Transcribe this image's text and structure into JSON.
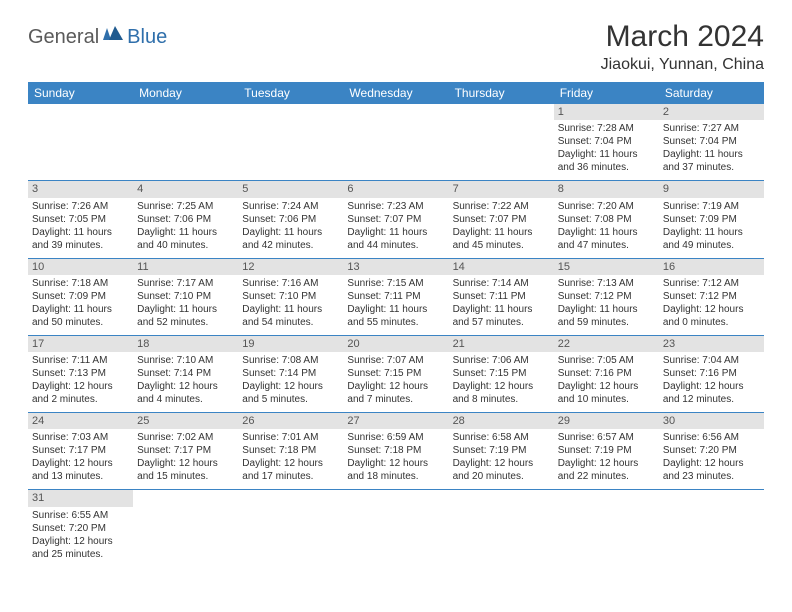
{
  "logo": {
    "part1": "General",
    "part2": "Blue"
  },
  "title": "March 2024",
  "location": "Jiaokui, Yunnan, China",
  "colors": {
    "header_bg": "#3b84c4",
    "header_text": "#ffffff",
    "daynum_bg": "#e3e3e3",
    "border": "#3b84c4",
    "text": "#333333",
    "logo_gray": "#5a5a5a",
    "logo_blue": "#2f6fab"
  },
  "weekdays": [
    "Sunday",
    "Monday",
    "Tuesday",
    "Wednesday",
    "Thursday",
    "Friday",
    "Saturday"
  ],
  "weeks": [
    [
      null,
      null,
      null,
      null,
      null,
      {
        "n": "1",
        "sunrise": "Sunrise: 7:28 AM",
        "sunset": "Sunset: 7:04 PM",
        "day1": "Daylight: 11 hours",
        "day2": "and 36 minutes."
      },
      {
        "n": "2",
        "sunrise": "Sunrise: 7:27 AM",
        "sunset": "Sunset: 7:04 PM",
        "day1": "Daylight: 11 hours",
        "day2": "and 37 minutes."
      }
    ],
    [
      {
        "n": "3",
        "sunrise": "Sunrise: 7:26 AM",
        "sunset": "Sunset: 7:05 PM",
        "day1": "Daylight: 11 hours",
        "day2": "and 39 minutes."
      },
      {
        "n": "4",
        "sunrise": "Sunrise: 7:25 AM",
        "sunset": "Sunset: 7:06 PM",
        "day1": "Daylight: 11 hours",
        "day2": "and 40 minutes."
      },
      {
        "n": "5",
        "sunrise": "Sunrise: 7:24 AM",
        "sunset": "Sunset: 7:06 PM",
        "day1": "Daylight: 11 hours",
        "day2": "and 42 minutes."
      },
      {
        "n": "6",
        "sunrise": "Sunrise: 7:23 AM",
        "sunset": "Sunset: 7:07 PM",
        "day1": "Daylight: 11 hours",
        "day2": "and 44 minutes."
      },
      {
        "n": "7",
        "sunrise": "Sunrise: 7:22 AM",
        "sunset": "Sunset: 7:07 PM",
        "day1": "Daylight: 11 hours",
        "day2": "and 45 minutes."
      },
      {
        "n": "8",
        "sunrise": "Sunrise: 7:20 AM",
        "sunset": "Sunset: 7:08 PM",
        "day1": "Daylight: 11 hours",
        "day2": "and 47 minutes."
      },
      {
        "n": "9",
        "sunrise": "Sunrise: 7:19 AM",
        "sunset": "Sunset: 7:09 PM",
        "day1": "Daylight: 11 hours",
        "day2": "and 49 minutes."
      }
    ],
    [
      {
        "n": "10",
        "sunrise": "Sunrise: 7:18 AM",
        "sunset": "Sunset: 7:09 PM",
        "day1": "Daylight: 11 hours",
        "day2": "and 50 minutes."
      },
      {
        "n": "11",
        "sunrise": "Sunrise: 7:17 AM",
        "sunset": "Sunset: 7:10 PM",
        "day1": "Daylight: 11 hours",
        "day2": "and 52 minutes."
      },
      {
        "n": "12",
        "sunrise": "Sunrise: 7:16 AM",
        "sunset": "Sunset: 7:10 PM",
        "day1": "Daylight: 11 hours",
        "day2": "and 54 minutes."
      },
      {
        "n": "13",
        "sunrise": "Sunrise: 7:15 AM",
        "sunset": "Sunset: 7:11 PM",
        "day1": "Daylight: 11 hours",
        "day2": "and 55 minutes."
      },
      {
        "n": "14",
        "sunrise": "Sunrise: 7:14 AM",
        "sunset": "Sunset: 7:11 PM",
        "day1": "Daylight: 11 hours",
        "day2": "and 57 minutes."
      },
      {
        "n": "15",
        "sunrise": "Sunrise: 7:13 AM",
        "sunset": "Sunset: 7:12 PM",
        "day1": "Daylight: 11 hours",
        "day2": "and 59 minutes."
      },
      {
        "n": "16",
        "sunrise": "Sunrise: 7:12 AM",
        "sunset": "Sunset: 7:12 PM",
        "day1": "Daylight: 12 hours",
        "day2": "and 0 minutes."
      }
    ],
    [
      {
        "n": "17",
        "sunrise": "Sunrise: 7:11 AM",
        "sunset": "Sunset: 7:13 PM",
        "day1": "Daylight: 12 hours",
        "day2": "and 2 minutes."
      },
      {
        "n": "18",
        "sunrise": "Sunrise: 7:10 AM",
        "sunset": "Sunset: 7:14 PM",
        "day1": "Daylight: 12 hours",
        "day2": "and 4 minutes."
      },
      {
        "n": "19",
        "sunrise": "Sunrise: 7:08 AM",
        "sunset": "Sunset: 7:14 PM",
        "day1": "Daylight: 12 hours",
        "day2": "and 5 minutes."
      },
      {
        "n": "20",
        "sunrise": "Sunrise: 7:07 AM",
        "sunset": "Sunset: 7:15 PM",
        "day1": "Daylight: 12 hours",
        "day2": "and 7 minutes."
      },
      {
        "n": "21",
        "sunrise": "Sunrise: 7:06 AM",
        "sunset": "Sunset: 7:15 PM",
        "day1": "Daylight: 12 hours",
        "day2": "and 8 minutes."
      },
      {
        "n": "22",
        "sunrise": "Sunrise: 7:05 AM",
        "sunset": "Sunset: 7:16 PM",
        "day1": "Daylight: 12 hours",
        "day2": "and 10 minutes."
      },
      {
        "n": "23",
        "sunrise": "Sunrise: 7:04 AM",
        "sunset": "Sunset: 7:16 PM",
        "day1": "Daylight: 12 hours",
        "day2": "and 12 minutes."
      }
    ],
    [
      {
        "n": "24",
        "sunrise": "Sunrise: 7:03 AM",
        "sunset": "Sunset: 7:17 PM",
        "day1": "Daylight: 12 hours",
        "day2": "and 13 minutes."
      },
      {
        "n": "25",
        "sunrise": "Sunrise: 7:02 AM",
        "sunset": "Sunset: 7:17 PM",
        "day1": "Daylight: 12 hours",
        "day2": "and 15 minutes."
      },
      {
        "n": "26",
        "sunrise": "Sunrise: 7:01 AM",
        "sunset": "Sunset: 7:18 PM",
        "day1": "Daylight: 12 hours",
        "day2": "and 17 minutes."
      },
      {
        "n": "27",
        "sunrise": "Sunrise: 6:59 AM",
        "sunset": "Sunset: 7:18 PM",
        "day1": "Daylight: 12 hours",
        "day2": "and 18 minutes."
      },
      {
        "n": "28",
        "sunrise": "Sunrise: 6:58 AM",
        "sunset": "Sunset: 7:19 PM",
        "day1": "Daylight: 12 hours",
        "day2": "and 20 minutes."
      },
      {
        "n": "29",
        "sunrise": "Sunrise: 6:57 AM",
        "sunset": "Sunset: 7:19 PM",
        "day1": "Daylight: 12 hours",
        "day2": "and 22 minutes."
      },
      {
        "n": "30",
        "sunrise": "Sunrise: 6:56 AM",
        "sunset": "Sunset: 7:20 PM",
        "day1": "Daylight: 12 hours",
        "day2": "and 23 minutes."
      }
    ],
    [
      {
        "n": "31",
        "sunrise": "Sunrise: 6:55 AM",
        "sunset": "Sunset: 7:20 PM",
        "day1": "Daylight: 12 hours",
        "day2": "and 25 minutes."
      },
      null,
      null,
      null,
      null,
      null,
      null
    ]
  ]
}
